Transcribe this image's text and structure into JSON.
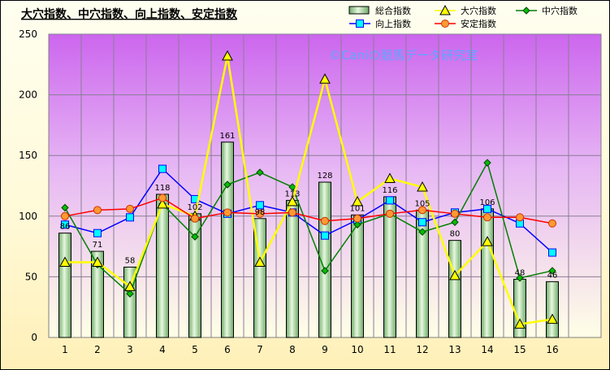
{
  "chart_data": {
    "type": "bar",
    "title": "大穴指数、中穴指数、向上指数、安定指数",
    "watermark": "©Caniの競馬データ研究室",
    "categories": [
      "1",
      "2",
      "3",
      "4",
      "5",
      "6",
      "7",
      "8",
      "9",
      "10",
      "11",
      "12",
      "13",
      "14",
      "15",
      "16"
    ],
    "ylim": [
      0,
      250
    ],
    "yticks": [
      0,
      50,
      100,
      150,
      200,
      250
    ],
    "grid": true,
    "legend_position": "top-right",
    "bar_series": {
      "name": "総合指数",
      "values": [
        86,
        71,
        58,
        118,
        102,
        161,
        98,
        113,
        128,
        101,
        116,
        105,
        80,
        106,
        48,
        46
      ],
      "color": "#b8e0b0"
    },
    "series": [
      {
        "name": "大穴指数",
        "marker": "triangle",
        "color": "#ffff00",
        "values": [
          62,
          62,
          42,
          110,
          100,
          232,
          62,
          112,
          213,
          112,
          131,
          124,
          51,
          79,
          11,
          15
        ]
      },
      {
        "name": "中穴指数",
        "marker": "diamond",
        "color": "#008000",
        "values": [
          107,
          60,
          36,
          110,
          83,
          126,
          136,
          124,
          55,
          93,
          102,
          87,
          95,
          144,
          49,
          55
        ]
      },
      {
        "name": "向上指数",
        "marker": "square",
        "color": "#0000ff",
        "fill": "#00ffff",
        "values": [
          93,
          86,
          99,
          139,
          114,
          102,
          109,
          103,
          84,
          97,
          113,
          95,
          103,
          106,
          94,
          70
        ]
      },
      {
        "name": "安定指数",
        "marker": "circle",
        "color": "#ff0000",
        "fill": "#ff9933",
        "values": [
          100,
          105,
          106,
          115,
          98,
          103,
          102,
          103,
          96,
          98,
          102,
          105,
          102,
          99,
          99,
          94
        ]
      }
    ]
  }
}
